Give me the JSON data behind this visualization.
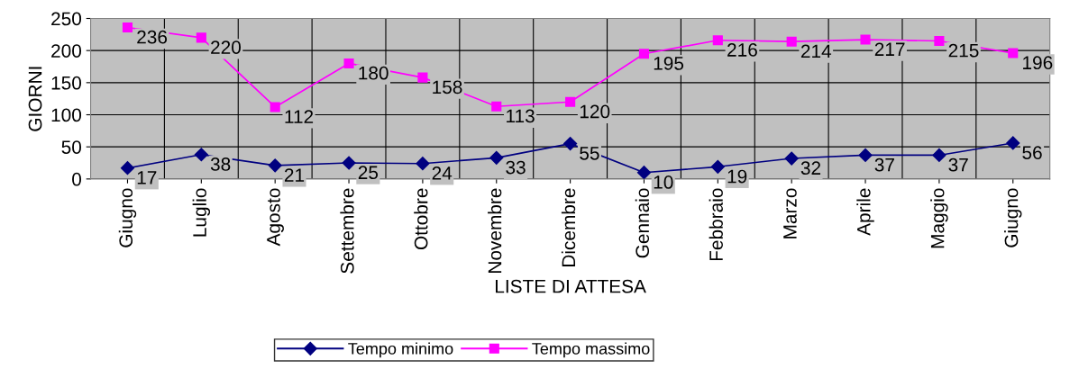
{
  "chart_data": {
    "type": "line",
    "xlabel": "LISTE DI ATTESA",
    "ylabel": "GIORNI",
    "categories": [
      "Giugno",
      "Luglio",
      "Agosto",
      "Settembre",
      "Ottobre",
      "Novembre",
      "Dicembre",
      "Gennaio",
      "Febbraio",
      "Marzo",
      "Aprile",
      "Maggio",
      "Giugno"
    ],
    "series": [
      {
        "name": "Tempo minimo",
        "color": "#000080",
        "marker": "diamond",
        "values": [
          17,
          38,
          21,
          25,
          24,
          33,
          55,
          10,
          19,
          32,
          37,
          37,
          56
        ]
      },
      {
        "name": "Tempo massimo",
        "color": "#ff00ff",
        "marker": "square",
        "values": [
          236,
          220,
          112,
          180,
          158,
          113,
          120,
          195,
          216,
          214,
          217,
          215,
          196
        ]
      }
    ],
    "ylim": [
      0,
      250
    ],
    "yticks": [
      0,
      50,
      100,
      150,
      200,
      250
    ],
    "grid": true,
    "legend": "bottom",
    "data_labels": true,
    "line_style": "solid"
  }
}
